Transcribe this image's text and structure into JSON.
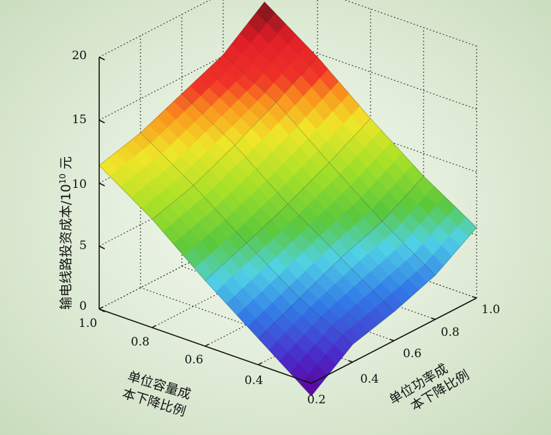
{
  "chart_data": {
    "type": "surface",
    "title": "",
    "xlabel": [
      "单位容量成",
      "本下降比例"
    ],
    "ylabel": [
      "单位功率成",
      "本下降比例"
    ],
    "zlabel": "输电线路投资成本/10",
    "zlabel_exp": "10",
    "zlabel_unit": " 元",
    "x_ticks": [
      "0.2",
      "0.4",
      "0.6",
      "0.8",
      "1.0"
    ],
    "y_ticks": [
      "0.4",
      "0.6",
      "0.8",
      "1.0"
    ],
    "z_ticks": [
      "0",
      "5",
      "10",
      "15",
      "20"
    ],
    "xlim": [
      0.2,
      1.0
    ],
    "ylim": [
      0.2,
      1.0
    ],
    "zlim": [
      0,
      20
    ],
    "x": [
      0.2,
      0.4,
      0.6,
      0.8,
      1.0
    ],
    "y": [
      0.2,
      0.4,
      0.6,
      0.8,
      1.0
    ],
    "z": [
      [
        -1.0,
        1.4,
        2.3,
        3.5,
        5.6
      ],
      [
        2.1,
        3.6,
        5.1,
        6.3,
        8.2
      ],
      [
        5.2,
        6.5,
        7.9,
        9.5,
        11.3
      ],
      [
        8.6,
        9.6,
        11.1,
        12.8,
        14.7
      ],
      [
        11.4,
        12.3,
        13.7,
        15.1,
        17.6
      ]
    ],
    "colormap": "jet",
    "grid": true
  }
}
